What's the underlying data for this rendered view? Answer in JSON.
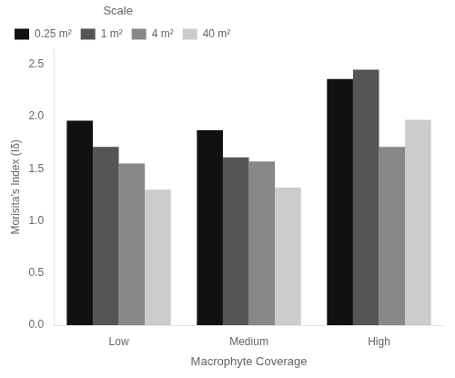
{
  "chart_data": {
    "type": "bar",
    "categories": [
      "Low",
      "Medium",
      "High"
    ],
    "series": [
      {
        "name": "0.25 m²",
        "color": "#111111",
        "values": [
          1.96,
          1.87,
          2.36
        ]
      },
      {
        "name": "1 m²",
        "color": "#555555",
        "values": [
          1.71,
          1.61,
          2.45
        ]
      },
      {
        "name": "4 m²",
        "color": "#888888",
        "values": [
          1.55,
          1.57,
          1.71
        ]
      },
      {
        "name": "40 m²",
        "color": "#cccccc",
        "values": [
          1.3,
          1.32,
          1.97
        ]
      }
    ],
    "legend_title": "Scale",
    "legend": "upper left",
    "xlabel": "Macrophyte Coverage",
    "ylabel": "Morisita's Index (Iδ)",
    "ylim": [
      0,
      2.65
    ],
    "yticks": [
      {
        "value": 0,
        "label": "0.0"
      },
      0.5,
      {
        "value": 1.0,
        "label": "1.0"
      },
      1.5,
      {
        "value": 2.0,
        "label": "2.0"
      },
      2.5
    ],
    "grid": false
  }
}
